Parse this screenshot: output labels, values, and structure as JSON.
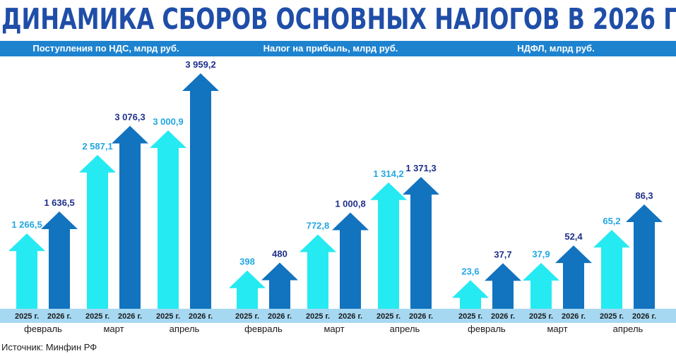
{
  "title": "ДИНАМИКА СБОРОВ ОСНОВНЫХ  НАЛОГОВ В 2026 Г.",
  "source": "Источник: Минфин РФ",
  "colors": {
    "series2025": "#26eaf1",
    "series2026": "#1273bf",
    "label2025": "#22a7e0",
    "label2026": "#1e2f8a",
    "header": "#1e83cf",
    "footer": "#a6d8f2"
  },
  "chart_data": [
    {
      "type": "bar",
      "title": "Поступления по НДС, млрд руб.",
      "categories": [
        "февраль",
        "март",
        "апрель"
      ],
      "series": [
        {
          "name": "2025 г.",
          "values": [
            1266.5,
            2587.1,
            3000.9
          ],
          "labels": [
            "1 266,5",
            "2 587,1",
            "3 000,9"
          ]
        },
        {
          "name": "2026 г.",
          "values": [
            1636.5,
            3076.3,
            3959.2
          ],
          "labels": [
            "1 636,5",
            "3 076,3",
            "3 959,2"
          ]
        }
      ]
    },
    {
      "type": "bar",
      "title": "Налог на прибыль, млрд руб.",
      "categories": [
        "февраль",
        "март",
        "апрель"
      ],
      "series": [
        {
          "name": "2025 г.",
          "values": [
            398,
            772.8,
            1314.2
          ],
          "labels": [
            "398",
            "772,8",
            "1 314,2"
          ]
        },
        {
          "name": "2026 г.",
          "values": [
            480,
            1000.8,
            1371.3
          ],
          "labels": [
            "480",
            "1 000,8",
            "1 371,3"
          ]
        }
      ]
    },
    {
      "type": "bar",
      "title": "НДФЛ, млрд руб.",
      "categories": [
        "февраль",
        "март",
        "апрель"
      ],
      "series": [
        {
          "name": "2025 г.",
          "values": [
            23.6,
            37.9,
            65.2
          ],
          "labels": [
            "23,6",
            "37,9",
            "65,2"
          ]
        },
        {
          "name": "2026 г.",
          "values": [
            37.7,
            52.4,
            86.3
          ],
          "labels": [
            "37,7",
            "52,4",
            "86,3"
          ]
        }
      ]
    }
  ]
}
